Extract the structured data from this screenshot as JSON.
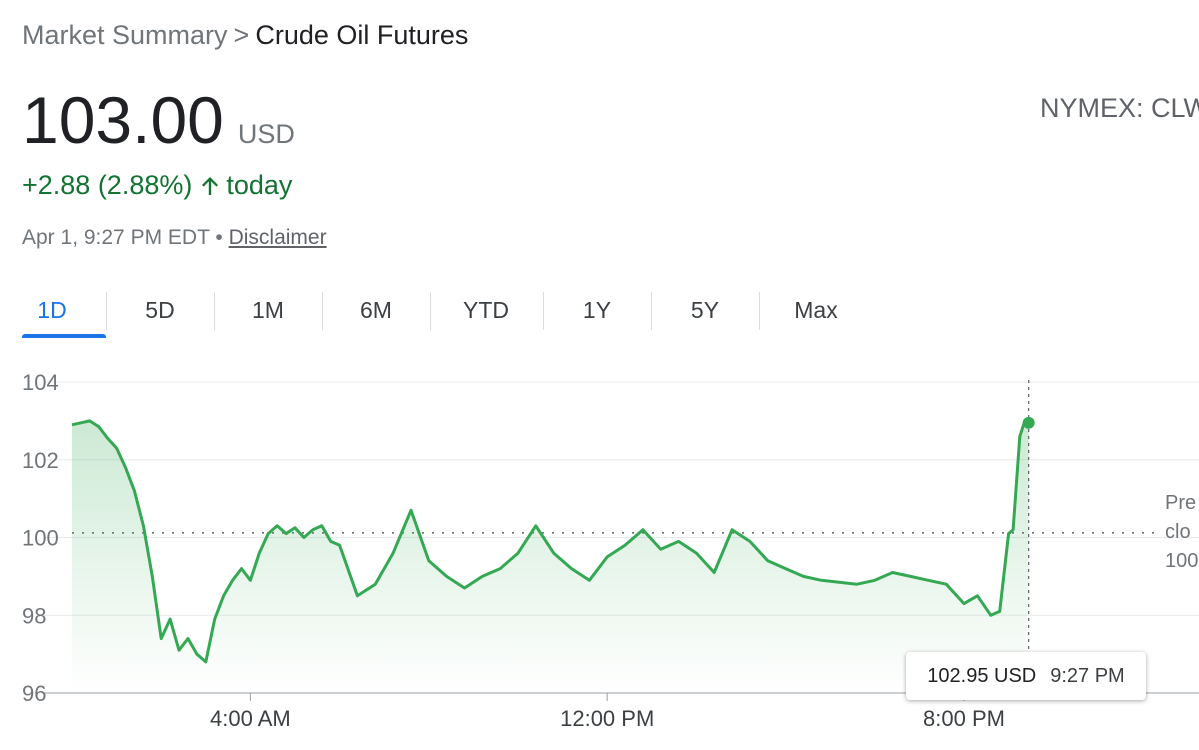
{
  "breadcrumb": {
    "parent": "Market Summary",
    "separator": ">",
    "current": "Crude Oil Futures"
  },
  "quote": {
    "price": "103.00",
    "currency": "USD",
    "exchange": "NYMEX: CLW",
    "change": "+2.88 (2.88%)",
    "change_suffix": "today",
    "timestamp": "Apr 1, 9:27 PM EDT",
    "bullet": "•",
    "disclaimer": "Disclaimer"
  },
  "colors": {
    "positive": "#137333",
    "line": "#34a853",
    "accent": "#1a73e8"
  },
  "tabs": [
    {
      "label": "1D",
      "active": true
    },
    {
      "label": "5D"
    },
    {
      "label": "1M"
    },
    {
      "label": "6M"
    },
    {
      "label": "YTD"
    },
    {
      "label": "1Y"
    },
    {
      "label": "5Y"
    },
    {
      "label": "Max"
    }
  ],
  "tooltip": {
    "price": "102.95 USD",
    "time": "9:27 PM"
  },
  "previous_close_label": {
    "line1": "Pre",
    "line2": "clo",
    "line3": "100"
  },
  "chart_data": {
    "type": "line",
    "x_unit": "hours since midnight",
    "ylim": [
      96,
      104
    ],
    "yticks": [
      104,
      102,
      100,
      98,
      96
    ],
    "xticks": [
      {
        "value": 4,
        "label": "4:00 AM"
      },
      {
        "value": 12,
        "label": "12:00 PM"
      },
      {
        "value": 20,
        "label": "8:00 PM"
      }
    ],
    "previous_close": 100.12,
    "grid": true,
    "x": [
      0,
      0.2,
      0.4,
      0.6,
      0.8,
      1.0,
      1.2,
      1.4,
      1.6,
      1.8,
      2.0,
      2.2,
      2.4,
      2.6,
      2.8,
      3.0,
      3.2,
      3.4,
      3.6,
      3.8,
      4.0,
      4.2,
      4.4,
      4.6,
      4.8,
      5.0,
      5.2,
      5.4,
      5.6,
      5.8,
      6.0,
      6.4,
      6.8,
      7.2,
      7.6,
      8.0,
      8.4,
      8.8,
      9.2,
      9.6,
      10.0,
      10.4,
      10.8,
      11.2,
      11.6,
      12.0,
      12.4,
      12.8,
      13.2,
      13.6,
      14.0,
      14.4,
      14.8,
      15.2,
      15.6,
      16.0,
      16.4,
      16.8,
      17.2,
      17.6,
      18.0,
      18.4,
      18.8,
      19.2,
      19.6,
      20.0,
      20.3,
      20.6,
      20.8,
      21.0,
      21.1,
      21.25,
      21.35,
      21.45
    ],
    "values": [
      102.9,
      102.95,
      103.0,
      102.85,
      102.55,
      102.3,
      101.8,
      101.2,
      100.3,
      99.0,
      97.4,
      97.9,
      97.1,
      97.4,
      97.0,
      96.8,
      97.9,
      98.5,
      98.9,
      99.2,
      98.9,
      99.6,
      100.1,
      100.3,
      100.1,
      100.25,
      100.0,
      100.2,
      100.3,
      99.9,
      99.8,
      98.5,
      98.8,
      99.6,
      100.7,
      99.4,
      99.0,
      98.7,
      99.0,
      99.2,
      99.6,
      100.3,
      99.6,
      99.2,
      98.9,
      99.5,
      99.8,
      100.2,
      99.7,
      99.9,
      99.6,
      99.1,
      100.2,
      99.9,
      99.4,
      99.2,
      99.0,
      98.9,
      98.85,
      98.8,
      98.9,
      99.1,
      99.0,
      98.9,
      98.8,
      98.3,
      98.5,
      98.0,
      98.1,
      100.1,
      100.2,
      102.6,
      102.95,
      102.95
    ]
  }
}
